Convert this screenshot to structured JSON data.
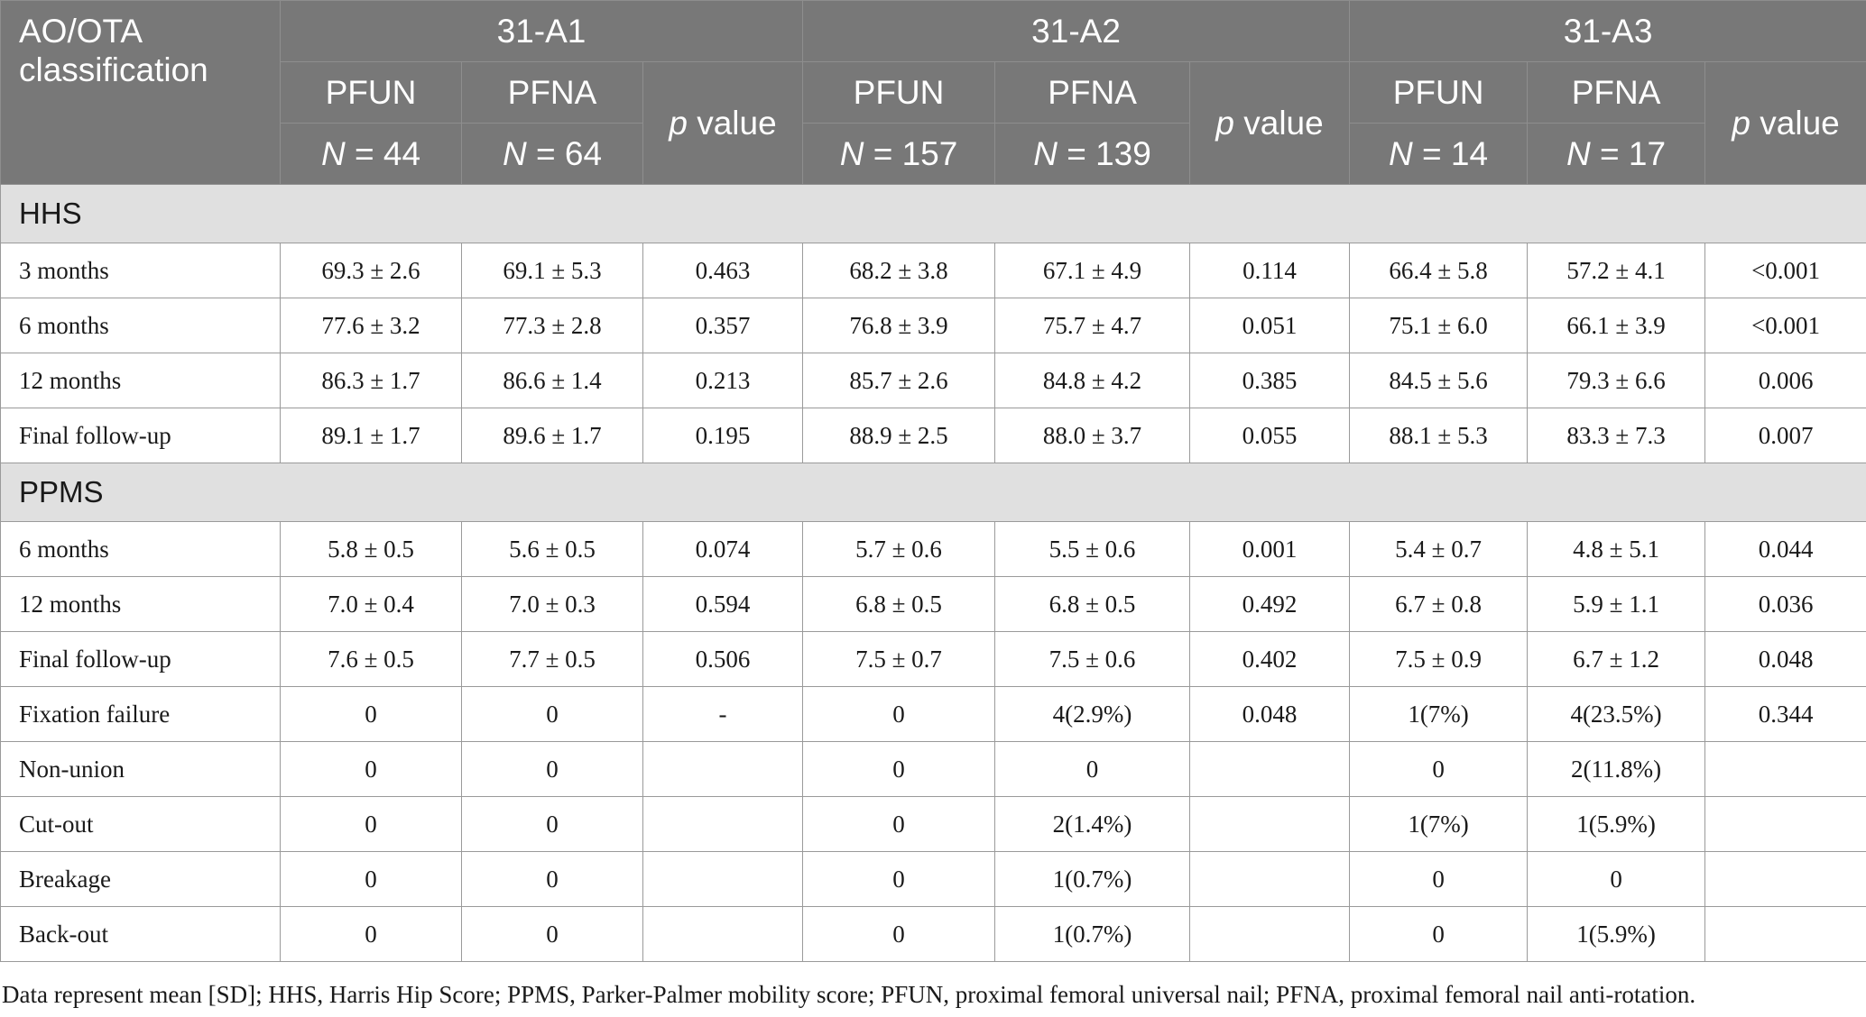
{
  "header": {
    "corner_label": "AO/OTA classification",
    "groups": [
      "31-A1",
      "31-A2",
      "31-A3"
    ],
    "col_pfun": "PFUN",
    "col_pfna": "PFNA",
    "p_italic": "p",
    "p_rest": " value",
    "n_prefix": "N",
    "n_values": [
      "= 44",
      "= 64",
      "= 157",
      "= 139",
      "= 14",
      "= 17"
    ]
  },
  "sections": [
    {
      "title": "HHS",
      "rows": [
        {
          "label": "3 months",
          "cells": [
            "69.3 ± 2.6",
            "69.1 ± 5.3",
            "0.463",
            "68.2 ± 3.8",
            "67.1 ± 4.9",
            "0.114",
            "66.4 ± 5.8",
            "57.2 ± 4.1",
            "<0.001"
          ]
        },
        {
          "label": "6 months",
          "cells": [
            "77.6 ± 3.2",
            "77.3 ± 2.8",
            "0.357",
            "76.8 ± 3.9",
            "75.7 ± 4.7",
            "0.051",
            "75.1 ± 6.0",
            "66.1 ± 3.9",
            "<0.001"
          ]
        },
        {
          "label": "12 months",
          "cells": [
            "86.3 ± 1.7",
            "86.6 ± 1.4",
            "0.213",
            "85.7 ± 2.6",
            "84.8 ± 4.2",
            "0.385",
            "84.5 ± 5.6",
            "79.3 ± 6.6",
            "0.006"
          ]
        },
        {
          "label": "Final follow-up",
          "cells": [
            "89.1 ± 1.7",
            "89.6 ± 1.7",
            "0.195",
            "88.9 ± 2.5",
            "88.0 ± 3.7",
            "0.055",
            "88.1 ± 5.3",
            "83.3 ± 7.3",
            "0.007"
          ]
        }
      ]
    },
    {
      "title": "PPMS",
      "rows": [
        {
          "label": "6 months",
          "cells": [
            "5.8 ± 0.5",
            "5.6 ± 0.5",
            "0.074",
            "5.7 ± 0.6",
            "5.5 ± 0.6",
            "0.001",
            "5.4 ± 0.7",
            "4.8 ± 5.1",
            "0.044"
          ]
        },
        {
          "label": "12 months",
          "cells": [
            "7.0 ± 0.4",
            "7.0 ± 0.3",
            "0.594",
            "6.8 ± 0.5",
            "6.8 ± 0.5",
            "0.492",
            "6.7 ± 0.8",
            "5.9 ± 1.1",
            "0.036"
          ]
        },
        {
          "label": "Final follow-up",
          "cells": [
            "7.6 ± 0.5",
            "7.7 ± 0.5",
            "0.506",
            "7.5 ± 0.7",
            "7.5 ± 0.6",
            "0.402",
            "7.5 ± 0.9",
            "6.7 ± 1.2",
            "0.048"
          ]
        },
        {
          "label": "Fixation failure",
          "cells": [
            "0",
            "0",
            "-",
            "0",
            "4(2.9%)",
            "0.048",
            "1(7%)",
            "4(23.5%)",
            "0.344"
          ]
        },
        {
          "label": "Non-union",
          "cells": [
            "0",
            "0",
            "",
            "0",
            "0",
            "",
            "0",
            "2(11.8%)",
            ""
          ]
        },
        {
          "label": "Cut-out",
          "cells": [
            "0",
            "0",
            "",
            "0",
            "2(1.4%)",
            "",
            "1(7%)",
            "1(5.9%)",
            ""
          ]
        },
        {
          "label": "Breakage",
          "cells": [
            "0",
            "0",
            "",
            "0",
            "1(0.7%)",
            "",
            "0",
            "0",
            ""
          ]
        },
        {
          "label": "Back-out",
          "cells": [
            "0",
            "0",
            "",
            "0",
            "1(0.7%)",
            "",
            "0",
            "1(5.9%)",
            ""
          ]
        }
      ]
    }
  ],
  "footnote": "Data represent mean [SD]; HHS, Harris Hip Score; PPMS, Parker-Palmer mobility score; PFUN, proximal femoral universal nail; PFNA, proximal femoral nail anti-rotation."
}
